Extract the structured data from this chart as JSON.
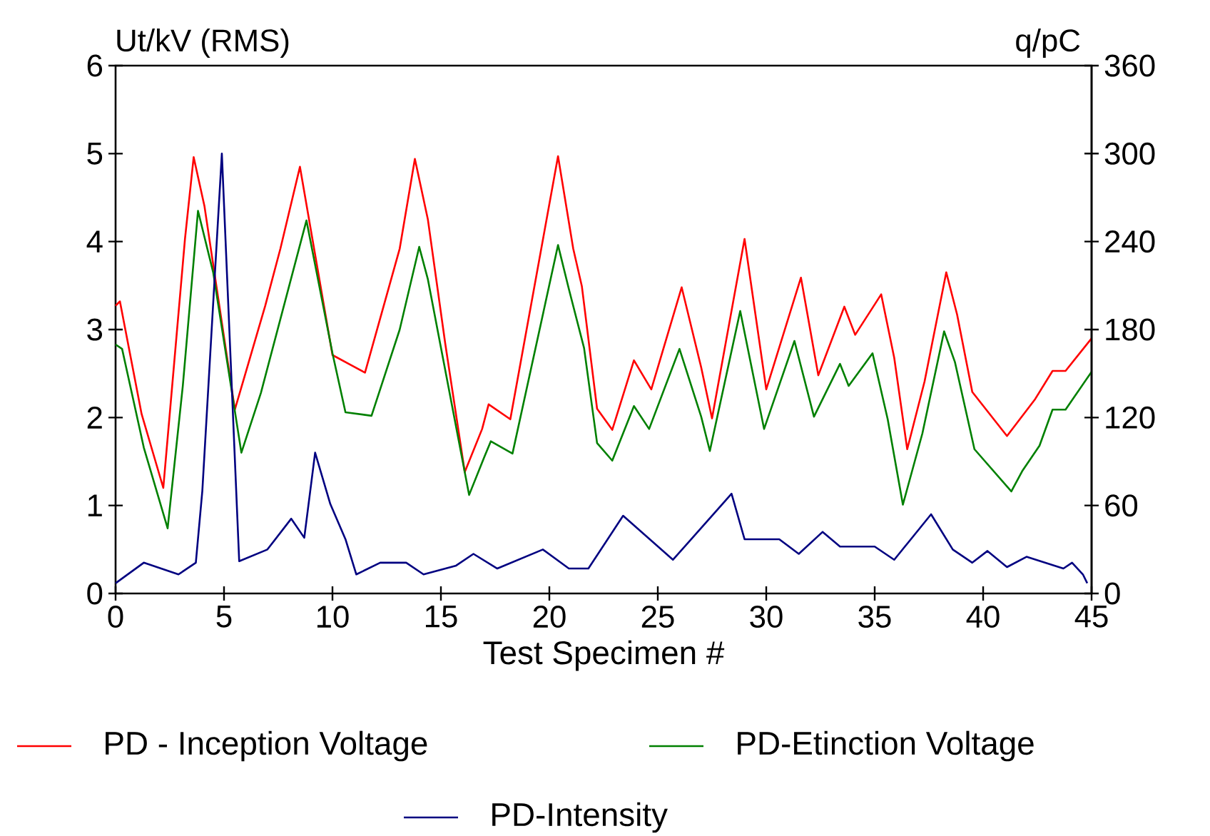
{
  "chart_data": {
    "type": "line",
    "xlabel": "Test Specimen #",
    "ylabel": "Ut/kV (RMS)",
    "y2label": "q/pC",
    "xlim": [
      0,
      45
    ],
    "xticks": [
      0,
      5,
      10,
      15,
      20,
      25,
      30,
      35,
      40,
      45
    ],
    "ylim": [
      0,
      6
    ],
    "yticks": [
      0,
      1,
      2,
      3,
      4,
      5,
      6
    ],
    "y2lim": [
      0,
      360
    ],
    "y2ticks": [
      0,
      60,
      120,
      180,
      240,
      300,
      360
    ],
    "legend": "bottom",
    "marker": "none",
    "line_style": "solid",
    "series": [
      {
        "name": "PD - Inception  Voltage",
        "color": "#ff0000",
        "x": [
          0,
          0.2,
          1.2,
          2.2,
          3.2,
          3.6,
          4.1,
          5.5,
          6.9,
          7.6,
          8.5,
          10.0,
          11.5,
          13.1,
          13.8,
          14.4,
          15.2,
          16.1,
          16.9,
          17.2,
          18.2,
          20.4,
          21.1,
          21.5,
          22.2,
          22.9,
          23.9,
          24.7,
          26.1,
          27.0,
          27.5,
          29.0,
          30.0,
          31.6,
          32.4,
          33.6,
          34.1,
          35.3,
          35.9,
          36.5,
          37.3,
          38.3,
          38.8,
          39.5,
          41.1,
          42.4,
          43.2,
          43.8,
          45.0
        ],
        "values": [
          3.27,
          3.32,
          2.04,
          1.2,
          4.03,
          4.96,
          4.4,
          2.09,
          3.27,
          3.92,
          4.85,
          2.71,
          2.51,
          3.92,
          4.94,
          4.25,
          2.84,
          1.38,
          1.87,
          2.15,
          1.98,
          4.97,
          3.92,
          3.49,
          2.1,
          1.86,
          2.65,
          2.32,
          3.48,
          2.57,
          1.99,
          4.03,
          2.32,
          3.59,
          2.48,
          3.26,
          2.94,
          3.4,
          2.68,
          1.64,
          2.41,
          3.65,
          3.17,
          2.29,
          1.79,
          2.21,
          2.53,
          2.53,
          2.9
        ]
      },
      {
        "name": "PD-Etinction Voltage",
        "color": "#008000",
        "x": [
          0,
          0.3,
          1.3,
          2.4,
          3.1,
          3.8,
          4.5,
          5.8,
          6.7,
          8.8,
          10.0,
          10.6,
          11.8,
          13.1,
          14.0,
          14.4,
          16.3,
          17.0,
          17.3,
          18.3,
          20.4,
          20.9,
          21.6,
          22.2,
          22.9,
          23.9,
          24.6,
          26.0,
          27.0,
          27.4,
          28.8,
          29.9,
          31.3,
          32.2,
          33.4,
          33.8,
          34.9,
          35.6,
          36.3,
          37.2,
          38.2,
          38.7,
          39.6,
          41.3,
          41.8,
          42.6,
          43.2,
          43.8,
          45.0
        ],
        "values": [
          2.83,
          2.78,
          1.66,
          0.74,
          2.36,
          4.35,
          3.65,
          1.6,
          2.28,
          4.24,
          2.73,
          2.06,
          2.02,
          3.0,
          3.94,
          3.57,
          1.12,
          1.55,
          1.73,
          1.59,
          3.96,
          3.46,
          2.79,
          1.71,
          1.51,
          2.13,
          1.87,
          2.78,
          2.01,
          1.62,
          3.21,
          1.87,
          2.87,
          2.01,
          2.61,
          2.36,
          2.73,
          1.98,
          1.01,
          1.82,
          2.98,
          2.63,
          1.64,
          1.16,
          1.39,
          1.68,
          2.09,
          2.09,
          2.52
        ]
      },
      {
        "name": "PD-Intensity",
        "color": "#000080",
        "axis": "y2",
        "x": [
          0,
          1.3,
          2.9,
          3.7,
          4.0,
          4.9,
          5.7,
          7.0,
          8.1,
          8.7,
          9.2,
          9.9,
          10.6,
          11.1,
          12.2,
          13.4,
          14.2,
          15.7,
          16.5,
          17.6,
          19.7,
          20.9,
          21.8,
          23.4,
          25.7,
          28.4,
          29.0,
          30.6,
          31.5,
          32.6,
          33.4,
          35.0,
          35.9,
          37.6,
          38.6,
          39.5,
          40.2,
          41.1,
          42.0,
          43.7,
          44.1,
          44.6,
          44.8
        ],
        "values": [
          7,
          21,
          13,
          21,
          70,
          300,
          22,
          30,
          51,
          38,
          96,
          61,
          37,
          13,
          21,
          21,
          13,
          19,
          27,
          17,
          30,
          17,
          17,
          53,
          23,
          68,
          37,
          37,
          27,
          42,
          32,
          32,
          23,
          54,
          30,
          21,
          29,
          18,
          25,
          17,
          21,
          13,
          7
        ]
      }
    ]
  }
}
